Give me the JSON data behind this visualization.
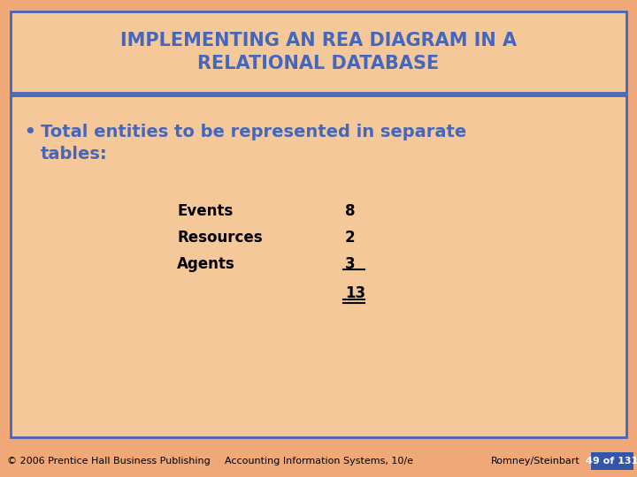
{
  "title_line1": "IMPLEMENTING AN REA DIAGRAM IN A",
  "title_line2": "RELATIONAL DATABASE",
  "title_color": "#4466bb",
  "title_bg": "#f5c89a",
  "title_border": "#4466bb",
  "body_bg": "#f5c89a",
  "body_border": "#4466bb",
  "bullet_text_line1": "Total entities to be represented in separate",
  "bullet_text_line2": "tables:",
  "bullet_color": "#4466bb",
  "table_rows": [
    {
      "label": "Events",
      "value": "8"
    },
    {
      "label": "Resources",
      "value": "2"
    },
    {
      "label": "Agents",
      "value": "3"
    }
  ],
  "total_label": "13",
  "footer_left": "© 2006 Prentice Hall Business Publishing",
  "footer_mid": "Accounting Information Systems, 10/e",
  "footer_right": "Romney/Steinbart",
  "footer_page": "49 of 131",
  "footer_page_bg": "#3355aa",
  "footer_page_color": "#ffffff",
  "bg_color": "#f0a878",
  "text_color": "#000000",
  "title_fontsize": 15,
  "bullet_fontsize": 14,
  "table_fontsize": 12,
  "footer_fontsize": 8
}
